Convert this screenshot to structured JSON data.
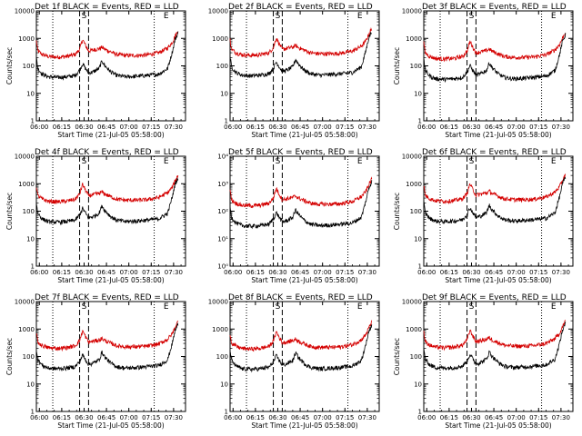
{
  "figure": {
    "colors": {
      "events": "#000000",
      "lld": "#d40000",
      "axes": "#000000",
      "background": "#ffffff"
    }
  },
  "chart_data": [
    {
      "type": "line",
      "title": "Det 1f BLACK = Events, RED = LLD",
      "xlabel": "Start Time (21-Jul-05 05:58:00)",
      "ylabel": "Counts/sec",
      "ylim_label_style": "decimal"
    },
    {
      "type": "line",
      "title": "Det 2f BLACK = Events, RED = LLD",
      "xlabel": "Start Time (21-Jul-05 05:58:00)",
      "ylabel": "",
      "ylim_label_style": "decimal"
    },
    {
      "type": "line",
      "title": "Det 3f BLACK = Events, RED = LLD",
      "xlabel": "Start Time (21-Jul-05 05:58:00)",
      "ylabel": "Counts/sec",
      "ylim_label_style": "decimal"
    },
    {
      "type": "line",
      "title": "Det 4f BLACK = Events, RED = LLD",
      "xlabel": "Start Time (21-Jul-05 05:58:00)",
      "ylabel": "Counts/sec",
      "ylim_label_style": "decimal"
    },
    {
      "type": "line",
      "title": "Det 5f BLACK = Events, RED = LLD",
      "xlabel": "Start Time (21-Jul-05 05:58:00)",
      "ylabel": "",
      "ylim_label_style": "power"
    },
    {
      "type": "line",
      "title": "Det 6f BLACK = Events, RED = LLD",
      "xlabel": "Start Time (21-Jul-05 05:58:00)",
      "ylabel": "Counts/sec",
      "ylim_label_style": "decimal"
    },
    {
      "type": "line",
      "title": "Det 7f BLACK = Events, RED = LLD",
      "xlabel": "Start Time (21-Jul-05 05:58:00)",
      "ylabel": "Counts/sec",
      "ylim_label_style": "decimal"
    },
    {
      "type": "line",
      "title": "Det 8f BLACK = Events, RED = LLD",
      "xlabel": "Start Time (21-Jul-05 05:58:00)",
      "ylabel": "",
      "ylim_label_style": "decimal"
    },
    {
      "type": "line",
      "title": "Det 9f BLACK = Events, RED = LLD",
      "xlabel": "Start Time (21-Jul-05 05:58:00)",
      "ylabel": "Counts/sec",
      "ylim_label_style": "decimal"
    }
  ],
  "shared_axes": {
    "x_ticks": [
      "06:00",
      "06:15",
      "06:30",
      "06:45",
      "07:00",
      "07:15",
      "07:30"
    ],
    "x_range": [
      "05:58",
      "07:38"
    ],
    "y_scale": "log",
    "y_range": [
      1,
      10000
    ],
    "y_ticks_decimal": [
      "1",
      "10",
      "100",
      "1000",
      "10000"
    ],
    "y_ticks_power": [
      "10⁰",
      "10¹",
      "10²",
      "10³",
      "10⁴"
    ],
    "dotted_lines_at": [
      "06:09",
      "07:17"
    ],
    "dashed_lines_at": [
      "06:27",
      "06:33"
    ],
    "markers": [
      {
        "label": "S",
        "at": "06:30"
      },
      {
        "label": "E",
        "at": "07:25"
      }
    ]
  },
  "series_shape": {
    "events": [
      [
        "05:58",
        200
      ],
      [
        "05:59",
        80
      ],
      [
        "06:02",
        50
      ],
      [
        "06:06",
        40
      ],
      [
        "06:12",
        38
      ],
      [
        "06:18",
        40
      ],
      [
        "06:24",
        45
      ],
      [
        "06:27",
        70
      ],
      [
        "06:29",
        120
      ],
      [
        "06:31",
        80
      ],
      [
        "06:33",
        55
      ],
      [
        "06:36",
        60
      ],
      [
        "06:40",
        80
      ],
      [
        "06:42",
        150
      ],
      [
        "06:44",
        100
      ],
      [
        "06:48",
        60
      ],
      [
        "06:52",
        45
      ],
      [
        "06:58",
        40
      ],
      [
        "07:05",
        42
      ],
      [
        "07:12",
        45
      ],
      [
        "07:20",
        50
      ],
      [
        "07:26",
        80
      ],
      [
        "07:29",
        300
      ],
      [
        "07:31",
        900
      ],
      [
        "07:33",
        1600
      ]
    ],
    "lld": [
      [
        "05:58",
        800
      ],
      [
        "05:59",
        350
      ],
      [
        "06:02",
        260
      ],
      [
        "06:06",
        220
      ],
      [
        "06:12",
        210
      ],
      [
        "06:18",
        220
      ],
      [
        "06:24",
        260
      ],
      [
        "06:27",
        400
      ],
      [
        "06:29",
        900
      ],
      [
        "06:31",
        550
      ],
      [
        "06:33",
        350
      ],
      [
        "06:36",
        380
      ],
      [
        "06:40",
        420
      ],
      [
        "06:42",
        480
      ],
      [
        "06:44",
        400
      ],
      [
        "06:48",
        320
      ],
      [
        "06:52",
        260
      ],
      [
        "06:58",
        240
      ],
      [
        "07:05",
        240
      ],
      [
        "07:12",
        250
      ],
      [
        "07:20",
        300
      ],
      [
        "07:26",
        450
      ],
      [
        "07:29",
        700
      ],
      [
        "07:31",
        1200
      ],
      [
        "07:33",
        2000
      ]
    ]
  }
}
